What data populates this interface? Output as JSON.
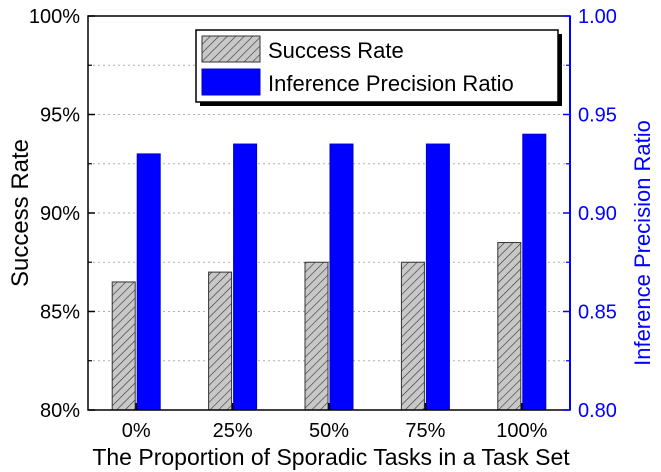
{
  "chart_data": {
    "type": "bar",
    "title": "",
    "xlabel": "The Proportion of Sporadic Tasks in a Task Set",
    "ylabel": "Success Rate",
    "ylabel_right": "Inference Precision Ratio",
    "categories": [
      "0%",
      "25%",
      "50%",
      "75%",
      "100%"
    ],
    "ylim": [
      80,
      100
    ],
    "ylim_right": [
      0.8,
      1.0
    ],
    "yticks": [
      "80%",
      "85%",
      "90%",
      "95%",
      "100%"
    ],
    "yticks_right": [
      "0.80",
      "0.85",
      "0.90",
      "0.95",
      "1.00"
    ],
    "grid": "horizontal dotted",
    "legend_position": "top-right",
    "series": [
      {
        "name": "Success Rate",
        "axis": "left",
        "pattern": "hatched",
        "color": "#c0c0c0",
        "values": [
          86.5,
          87.0,
          87.5,
          87.5,
          88.5
        ]
      },
      {
        "name": "Inference Precision Ratio",
        "axis": "right",
        "pattern": "solid",
        "color": "#0000ff",
        "values": [
          0.93,
          0.935,
          0.935,
          0.935,
          0.94
        ]
      }
    ],
    "right_axis_color": "#0000ff"
  }
}
